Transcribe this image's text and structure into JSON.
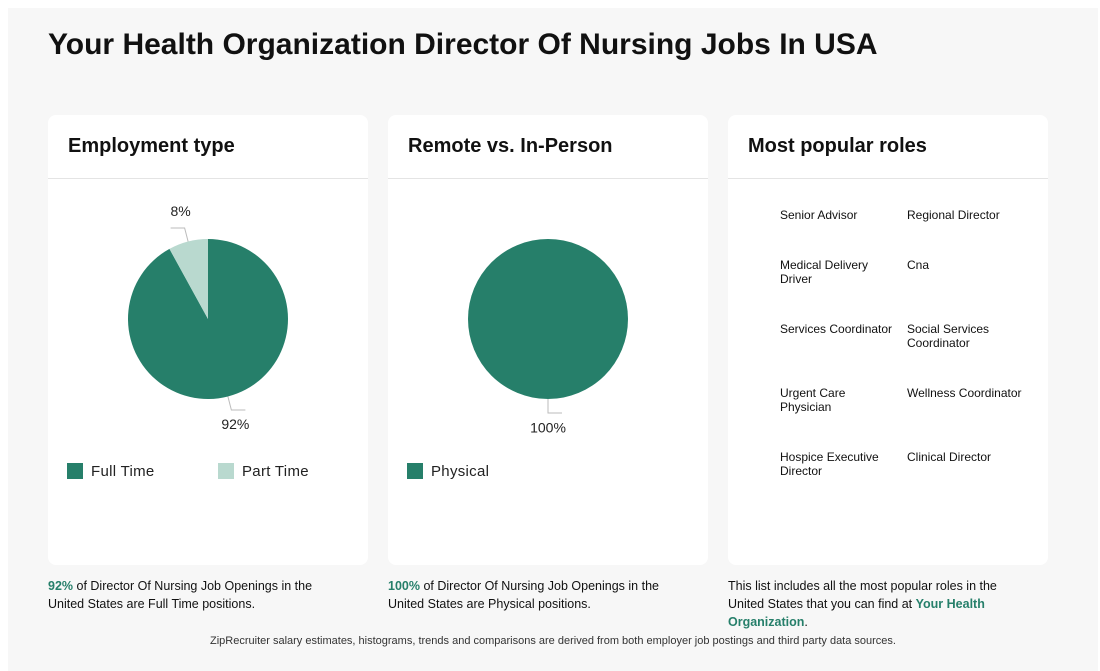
{
  "header": {
    "title": "Your Health Organization Director Of Nursing Jobs In USA"
  },
  "chart_data": [
    {
      "type": "pie",
      "title": "Employment type",
      "categories": [
        "Full Time",
        "Part Time"
      ],
      "values": [
        92,
        8
      ],
      "value_labels": [
        "92%",
        "8%"
      ],
      "colors": [
        "#267f6a",
        "#b9d9cf"
      ]
    },
    {
      "type": "pie",
      "title": "Remote vs. In-Person",
      "categories": [
        "Physical"
      ],
      "values": [
        100
      ],
      "value_labels": [
        "100%"
      ],
      "colors": [
        "#267f6a"
      ]
    }
  ],
  "roles": {
    "title": "Most popular roles",
    "items": [
      "Senior Advisor",
      "Regional Director",
      "Medical Delivery Driver",
      "Cna",
      "Services Coordinator",
      "Social Services Coordinator",
      "Urgent Care Physician",
      "Wellness Coordinator",
      "Hospice Executive Director",
      "Clinical Director"
    ]
  },
  "captions": [
    [
      {
        "text": "92%",
        "bold": true
      },
      {
        "text": " of Director Of Nursing Job Openings in the United States are Full Time positions.",
        "bold": false
      }
    ],
    [
      {
        "text": "100%",
        "bold": true
      },
      {
        "text": " of Director Of Nursing Job Openings in the United States are Physical positions.",
        "bold": false
      }
    ],
    [
      {
        "text": "This list includes all the most popular roles in the United States that you can find at ",
        "bold": false
      },
      {
        "text": "Your Health Organization",
        "bold": true
      },
      {
        "text": ".",
        "bold": false
      }
    ]
  ],
  "footer": "ZipRecruiter salary estimates, histograms, trends and comparisons are derived from both employer job postings and third party data sources."
}
